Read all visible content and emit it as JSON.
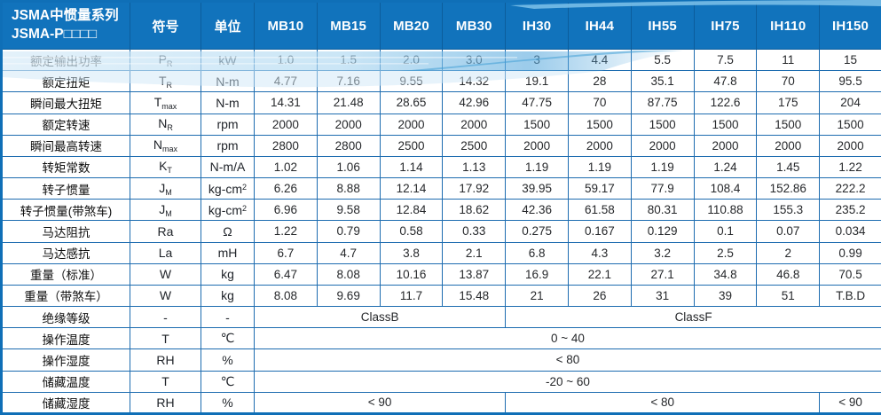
{
  "colors": {
    "header_blue": "#1173bc",
    "grid_blue": "#1d6cb0",
    "wave_light": "#cfe7f7",
    "wave_mid": "#8ec9ec",
    "wave_strong": "#3f9fd6",
    "header_text": "#ffffff",
    "body_text": "#26282b"
  },
  "table": {
    "title_line1": "JSMA中惯量系列",
    "title_line2": "JSMA-P□□□□",
    "symbol_header": "符号",
    "unit_header": "单位",
    "models": [
      "MB10",
      "MB15",
      "MB20",
      "MB30",
      "IH30",
      "IH44",
      "IH55",
      "IH75",
      "IH110",
      "IH150"
    ],
    "rows": [
      {
        "label": "额定输出功率",
        "symbol": "P_R",
        "unit": "kW",
        "cells": [
          "1.0",
          "1.5",
          "2.0",
          "3.0",
          "3",
          "4.4",
          "5.5",
          "7.5",
          "11",
          "15"
        ]
      },
      {
        "label": "额定扭矩",
        "symbol": "T_R",
        "unit": "N-m",
        "cells": [
          "4.77",
          "7.16",
          "9.55",
          "14.32",
          "19.1",
          "28",
          "35.1",
          "47.8",
          "70",
          "95.5"
        ]
      },
      {
        "label": "瞬间最大扭矩",
        "symbol": "T_max",
        "unit": "N-m",
        "cells": [
          "14.31",
          "21.48",
          "28.65",
          "42.96",
          "47.75",
          "70",
          "87.75",
          "122.6",
          "175",
          "204"
        ]
      },
      {
        "label": "额定转速",
        "symbol": "N_R",
        "unit": "rpm",
        "cells": [
          "2000",
          "2000",
          "2000",
          "2000",
          "1500",
          "1500",
          "1500",
          "1500",
          "1500",
          "1500"
        ]
      },
      {
        "label": "瞬间最高转速",
        "symbol": "N_max",
        "unit": "rpm",
        "cells": [
          "2800",
          "2800",
          "2500",
          "2500",
          "2000",
          "2000",
          "2000",
          "2000",
          "2000",
          "2000"
        ]
      },
      {
        "label": "转矩常数",
        "symbol": "K_T",
        "unit": "N-m/A",
        "cells": [
          "1.02",
          "1.06",
          "1.14",
          "1.13",
          "1.19",
          "1.19",
          "1.19",
          "1.24",
          "1.45",
          "1.22"
        ]
      },
      {
        "label": "转子惯量",
        "symbol": "J_M",
        "unit": "kg-cm^2",
        "cells": [
          "6.26",
          "8.88",
          "12.14",
          "17.92",
          "39.95",
          "59.17",
          "77.9",
          "108.4",
          "152.86",
          "222.2"
        ]
      },
      {
        "label": "转子惯量(带煞车)",
        "symbol": "J_M",
        "unit": "kg-cm^2",
        "cells": [
          "6.96",
          "9.58",
          "12.84",
          "18.62",
          "42.36",
          "61.58",
          "80.31",
          "110.88",
          "155.3",
          "235.2"
        ]
      },
      {
        "label": "马达阻抗",
        "symbol": "Ra",
        "unit": "Ω",
        "cells": [
          "1.22",
          "0.79",
          "0.58",
          "0.33",
          "0.275",
          "0.167",
          "0.129",
          "0.1",
          "0.07",
          "0.034"
        ]
      },
      {
        "label": "马达感抗",
        "symbol": "La",
        "unit": "mH",
        "cells": [
          "6.7",
          "4.7",
          "3.8",
          "2.1",
          "6.8",
          "4.3",
          "3.2",
          "2.5",
          "2",
          "0.99"
        ]
      },
      {
        "label": "重量（标准）",
        "symbol": "W",
        "unit": "kg",
        "cells": [
          "6.47",
          "8.08",
          "10.16",
          "13.87",
          "16.9",
          "22.1",
          "27.1",
          "34.8",
          "46.8",
          "70.5"
        ]
      },
      {
        "label": "重量（带煞车）",
        "symbol": "W",
        "unit": "kg",
        "cells": [
          "8.08",
          "9.69",
          "11.7",
          "15.48",
          "21",
          "26",
          "31",
          "39",
          "51",
          "T.B.D"
        ]
      },
      {
        "label": "绝缘等级",
        "symbol": "-",
        "unit": "-",
        "cells": [
          {
            "t": "ClassB",
            "span": 4
          },
          {
            "t": "ClassF",
            "span": 6
          }
        ]
      },
      {
        "label": "操作温度",
        "symbol": "T",
        "unit": "℃",
        "cells": [
          {
            "t": "0 ~ 40",
            "span": 10
          }
        ]
      },
      {
        "label": "操作湿度",
        "symbol": "RH",
        "unit": "%",
        "cells": [
          {
            "t": "< 80",
            "span": 10
          }
        ]
      },
      {
        "label": "储藏温度",
        "symbol": "T",
        "unit": "℃",
        "cells": [
          {
            "t": "-20 ~ 60",
            "span": 10
          }
        ]
      },
      {
        "label": "储藏湿度",
        "symbol": "RH",
        "unit": "%",
        "cells": [
          {
            "t": "< 90",
            "span": 4
          },
          {
            "t": "< 80",
            "span": 5
          },
          {
            "t": "< 90",
            "span": 1
          }
        ]
      }
    ]
  }
}
